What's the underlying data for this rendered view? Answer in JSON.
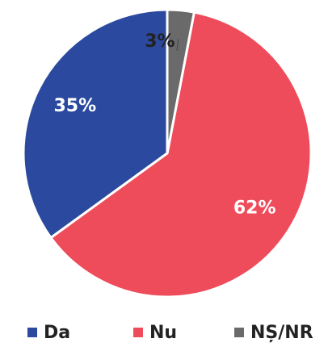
{
  "chart_data": {
    "type": "pie",
    "categories": [
      "Da",
      "Nu",
      "NȘ/NR"
    ],
    "values": [
      35,
      62,
      3
    ],
    "value_labels": [
      "35%",
      "62%",
      "3%"
    ],
    "colors": [
      "#2b4a9f",
      "#ee4c5b",
      "#6a6a6a"
    ],
    "legend": "bottom"
  }
}
